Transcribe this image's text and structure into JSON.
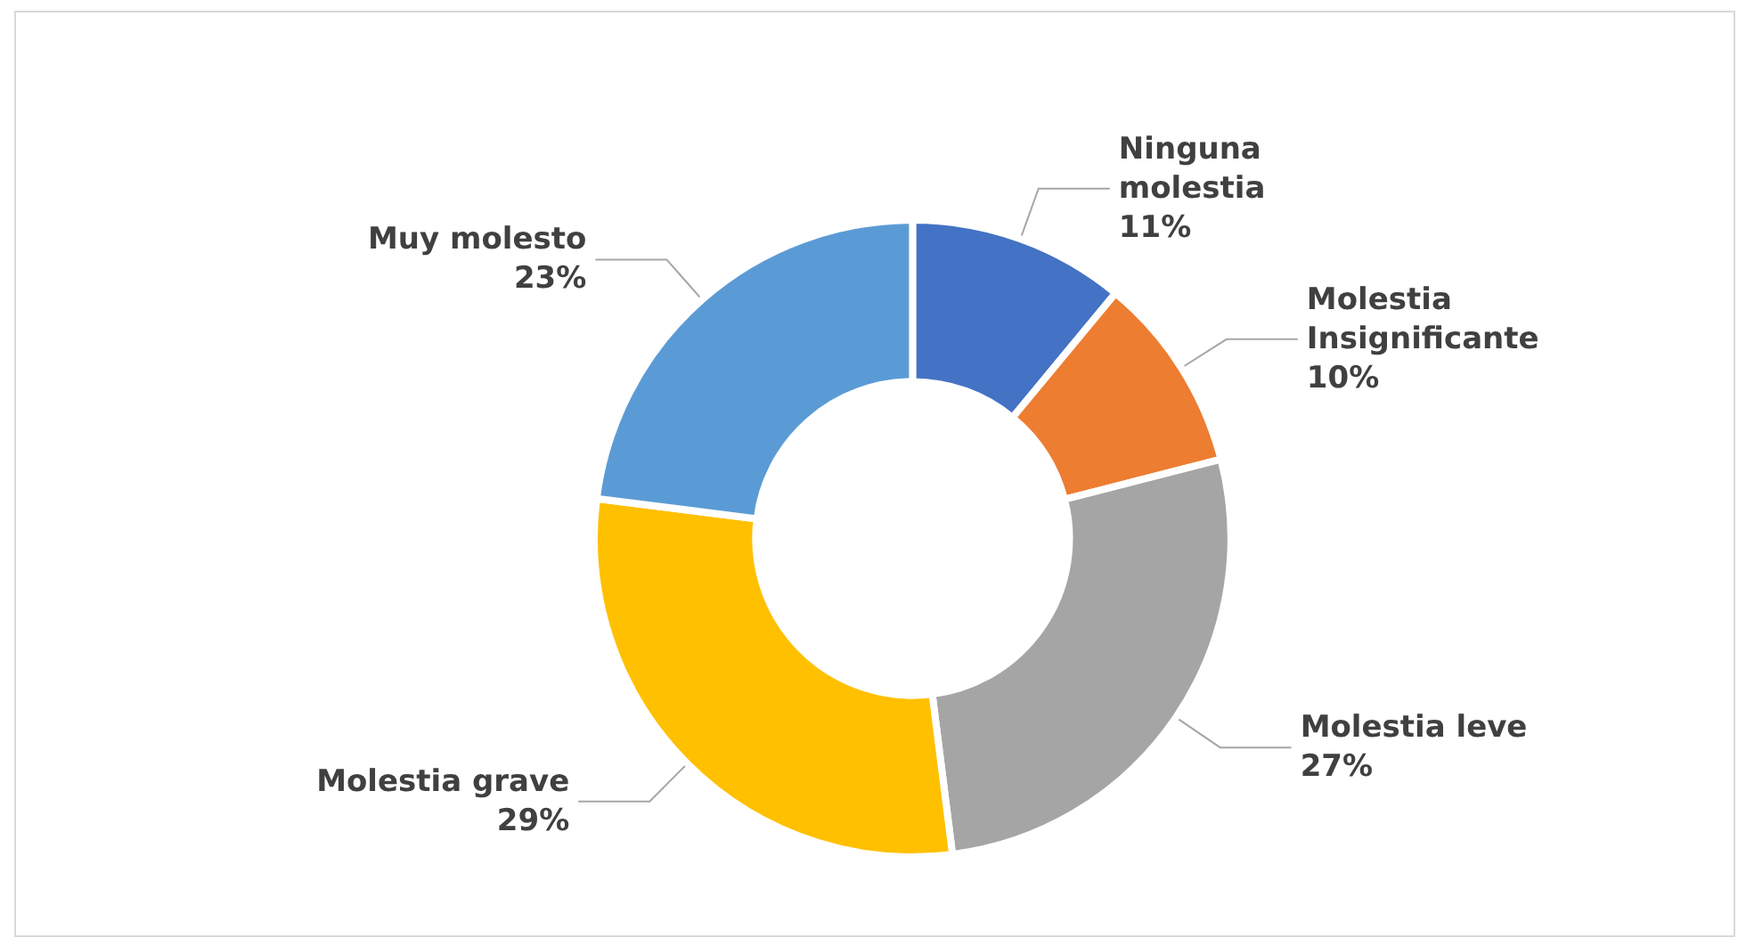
{
  "chart_data": {
    "type": "donut",
    "categories": [
      "Ninguna molestia",
      "Molestia Insignificante",
      "Molestia leve",
      "Molestia grave",
      "Muy molesto"
    ],
    "values": [
      11,
      10,
      27,
      29,
      23
    ],
    "value_labels": [
      "11%",
      "10%",
      "27%",
      "29%",
      "23%"
    ],
    "colors": [
      "#4472c4",
      "#ed7d31",
      "#a5a5a5",
      "#ffc000",
      "#5b9bd5"
    ],
    "legend": false
  }
}
